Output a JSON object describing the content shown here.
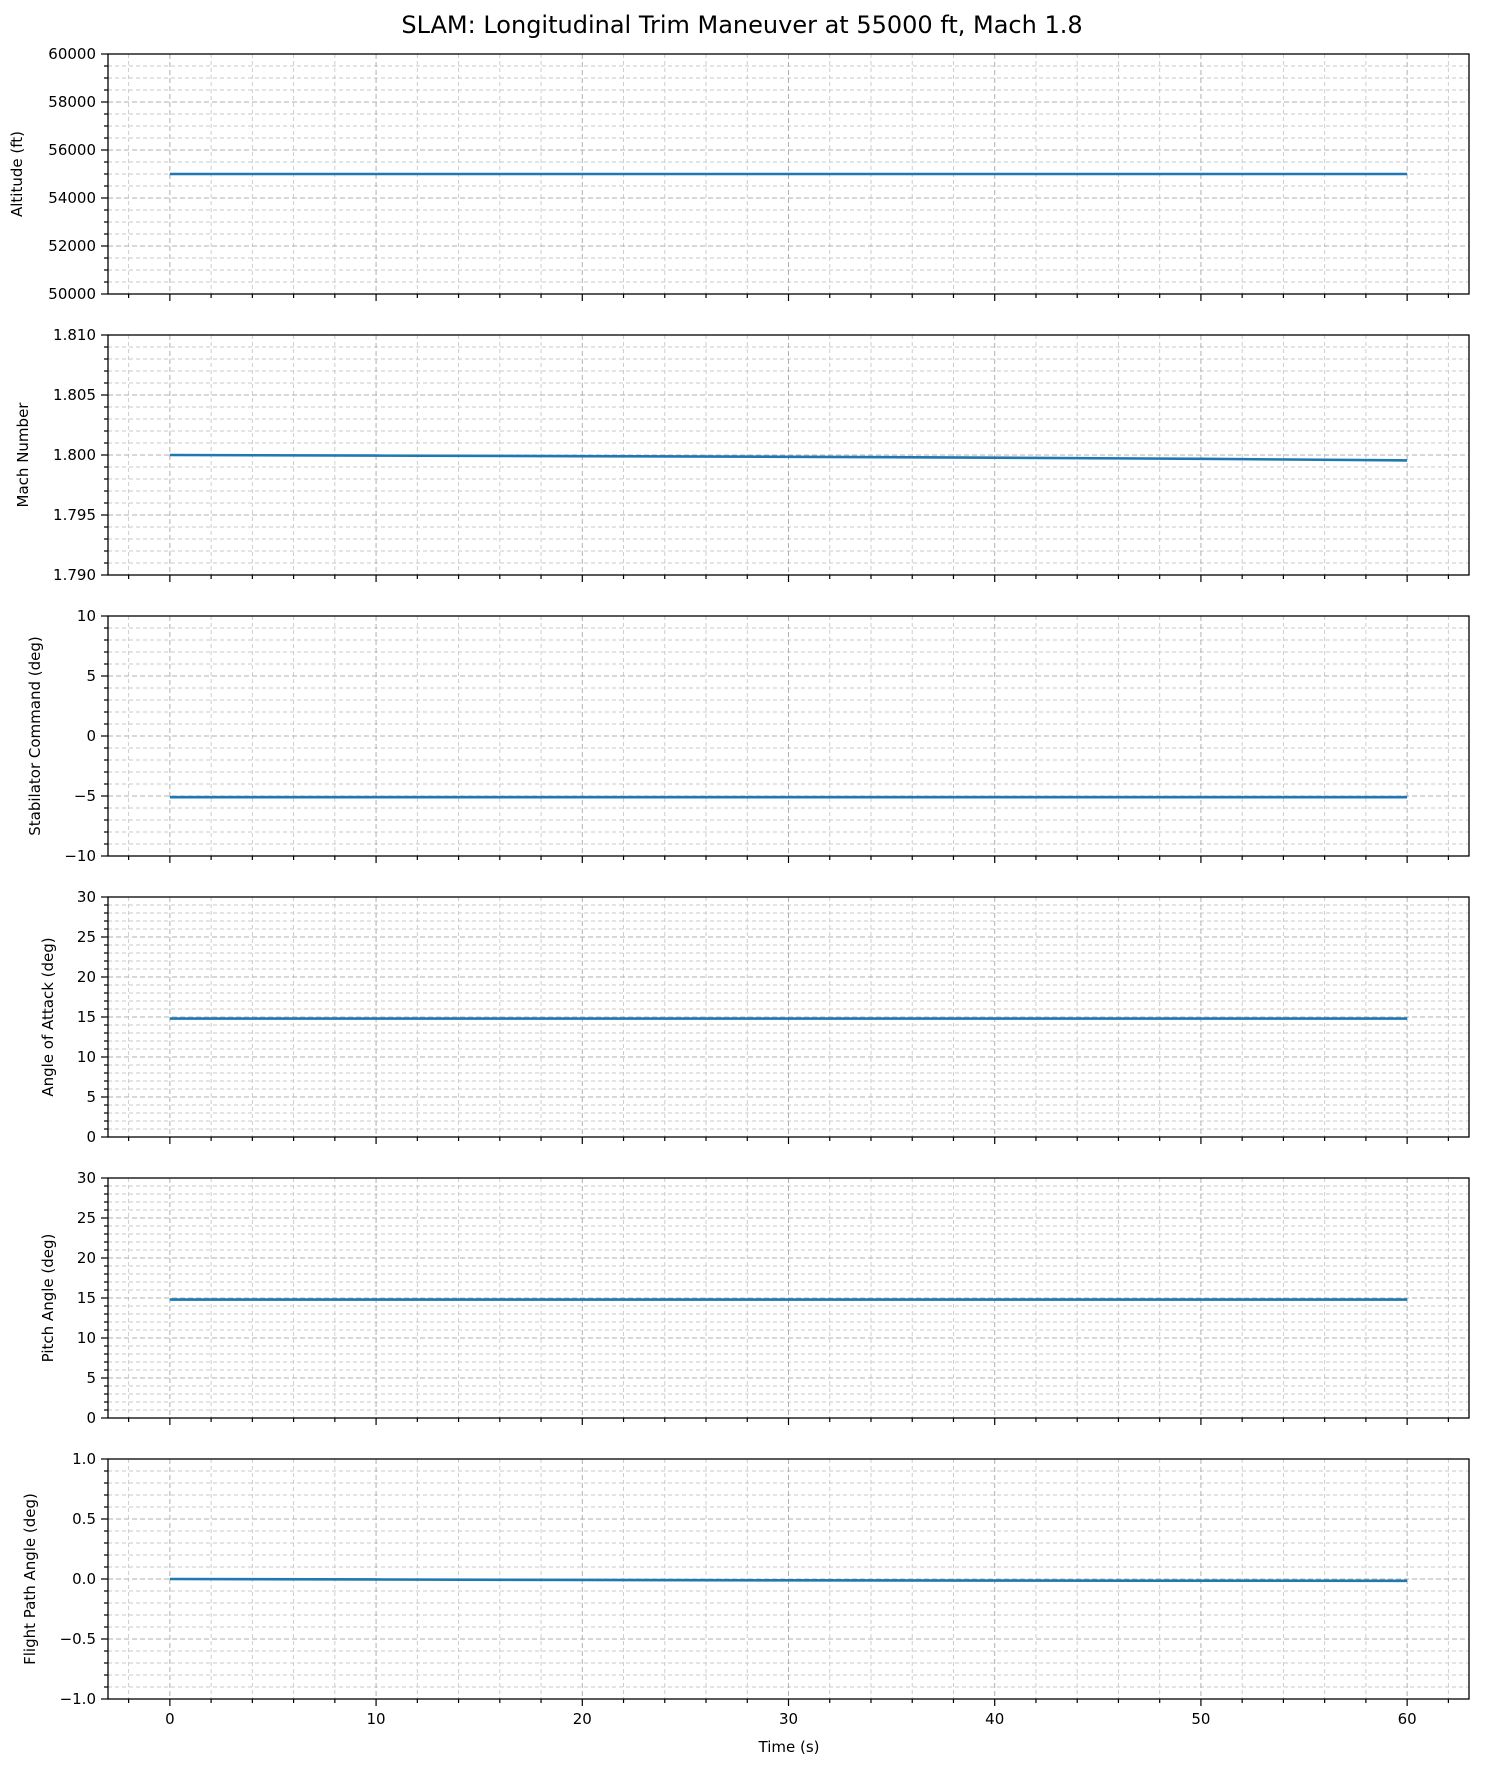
{
  "figure": {
    "title": "SLAM: Longitudinal Trim Maneuver at 55000 ft, Mach 1.8",
    "xlabel": "Time (s)",
    "line_color": "#1f77b4"
  },
  "chart_data": [
    {
      "type": "line",
      "ylabel": "Altitude (ft)",
      "xlim": [
        -3,
        63
      ],
      "ylim": [
        50000,
        60000
      ],
      "yticks": [
        "50000",
        "52000",
        "54000",
        "56000",
        "58000",
        "60000"
      ],
      "ytick_values": [
        50000,
        52000,
        54000,
        56000,
        58000,
        60000
      ],
      "y_minor_step": 500,
      "grid": true,
      "series": [
        {
          "x": [
            0,
            60
          ],
          "y": [
            55000,
            55000
          ]
        }
      ]
    },
    {
      "type": "line",
      "ylabel": "Mach Number",
      "xlim": [
        -3,
        63
      ],
      "ylim": [
        1.79,
        1.81
      ],
      "yticks": [
        "1.790",
        "1.795",
        "1.800",
        "1.805",
        "1.810"
      ],
      "ytick_values": [
        1.79,
        1.795,
        1.8,
        1.805,
        1.81
      ],
      "y_minor_step": 0.001,
      "grid": true,
      "series": [
        {
          "x": [
            0,
            10,
            20,
            30,
            40,
            50,
            60
          ],
          "y": [
            1.8,
            1.79995,
            1.7999,
            1.79985,
            1.79978,
            1.79968,
            1.79955
          ]
        }
      ]
    },
    {
      "type": "line",
      "ylabel": "Stabilator Command (deg)",
      "xlim": [
        -3,
        63
      ],
      "ylim": [
        -10,
        10
      ],
      "yticks": [
        "−10",
        "−5",
        "0",
        "5",
        "10"
      ],
      "ytick_values": [
        -10,
        -5,
        0,
        5,
        10
      ],
      "y_minor_step": 1,
      "grid": true,
      "series": [
        {
          "x": [
            0,
            60
          ],
          "y": [
            -5.1,
            -5.1
          ]
        }
      ]
    },
    {
      "type": "line",
      "ylabel": "Angle of Attack (deg)",
      "xlim": [
        -3,
        63
      ],
      "ylim": [
        0,
        30
      ],
      "yticks": [
        "0",
        "5",
        "10",
        "15",
        "20",
        "25",
        "30"
      ],
      "ytick_values": [
        0,
        5,
        10,
        15,
        20,
        25,
        30
      ],
      "y_minor_step": 1,
      "grid": true,
      "series": [
        {
          "x": [
            0,
            60
          ],
          "y": [
            14.8,
            14.8
          ]
        }
      ]
    },
    {
      "type": "line",
      "ylabel": "Pitch Angle (deg)",
      "xlim": [
        -3,
        63
      ],
      "ylim": [
        0,
        30
      ],
      "yticks": [
        "0",
        "5",
        "10",
        "15",
        "20",
        "25",
        "30"
      ],
      "ytick_values": [
        0,
        5,
        10,
        15,
        20,
        25,
        30
      ],
      "y_minor_step": 1,
      "grid": true,
      "series": [
        {
          "x": [
            0,
            60
          ],
          "y": [
            14.8,
            14.8
          ]
        }
      ]
    },
    {
      "type": "line",
      "ylabel": "Flight Path Angle (deg)",
      "xlim": [
        -3,
        63
      ],
      "ylim": [
        -1.0,
        1.0
      ],
      "yticks": [
        "−1.0",
        "−0.5",
        "0.0",
        "0.5",
        "1.0"
      ],
      "ytick_values": [
        -1.0,
        -0.5,
        0.0,
        0.5,
        1.0
      ],
      "y_minor_step": 0.1,
      "grid": true,
      "series": [
        {
          "x": [
            0,
            10,
            20,
            30,
            40,
            50,
            60
          ],
          "y": [
            0.0,
            -0.004,
            -0.008,
            -0.011,
            -0.013,
            -0.014,
            -0.015
          ]
        }
      ]
    }
  ],
  "x_axis": {
    "ticks": [
      "0",
      "10",
      "20",
      "30",
      "40",
      "50",
      "60"
    ],
    "tick_values": [
      0,
      10,
      20,
      30,
      40,
      50,
      60
    ],
    "minor_step": 2
  }
}
